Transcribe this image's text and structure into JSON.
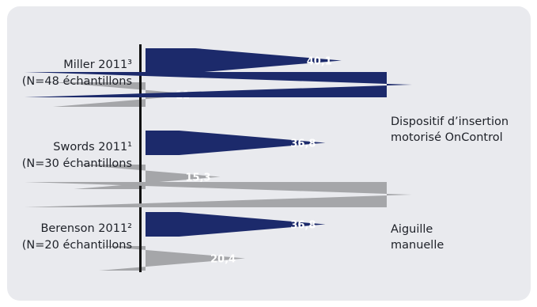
{
  "colors": {
    "panel": "#e9eaee",
    "series_dark": "#1c2a6b",
    "series_gray": "#a5a6a9",
    "axis": "#111111"
  },
  "chart_data": {
    "type": "bar",
    "orientation": "horizontal",
    "title": "",
    "xlabel": "",
    "ylabel": "",
    "xlim": [
      0,
      42
    ],
    "grid": false,
    "legend_position": "right",
    "categories": [
      {
        "line1": "Miller 2011³",
        "line2": "(N=48 échantillons"
      },
      {
        "line1": "Swords 2011¹",
        "line2": "(N=30 échantillons"
      },
      {
        "line1": "Berenson 2011²",
        "line2": "(N=20 échantillons"
      }
    ],
    "series": [
      {
        "name_lines": [
          "Dispositif d’insertion",
          "motorisé OnControl"
        ],
        "color": "#1c2a6b",
        "values": [
          40.1,
          36.8,
          36.8
        ],
        "labels": [
          "40,1",
          "36,8",
          "36,8"
        ]
      },
      {
        "name_lines": [
          "Aiguille",
          "manuelle"
        ],
        "color": "#a5a6a9",
        "values": [
          11,
          15.3,
          20.4
        ],
        "labels": [
          "11",
          "15,3",
          "20,4"
        ]
      }
    ]
  }
}
